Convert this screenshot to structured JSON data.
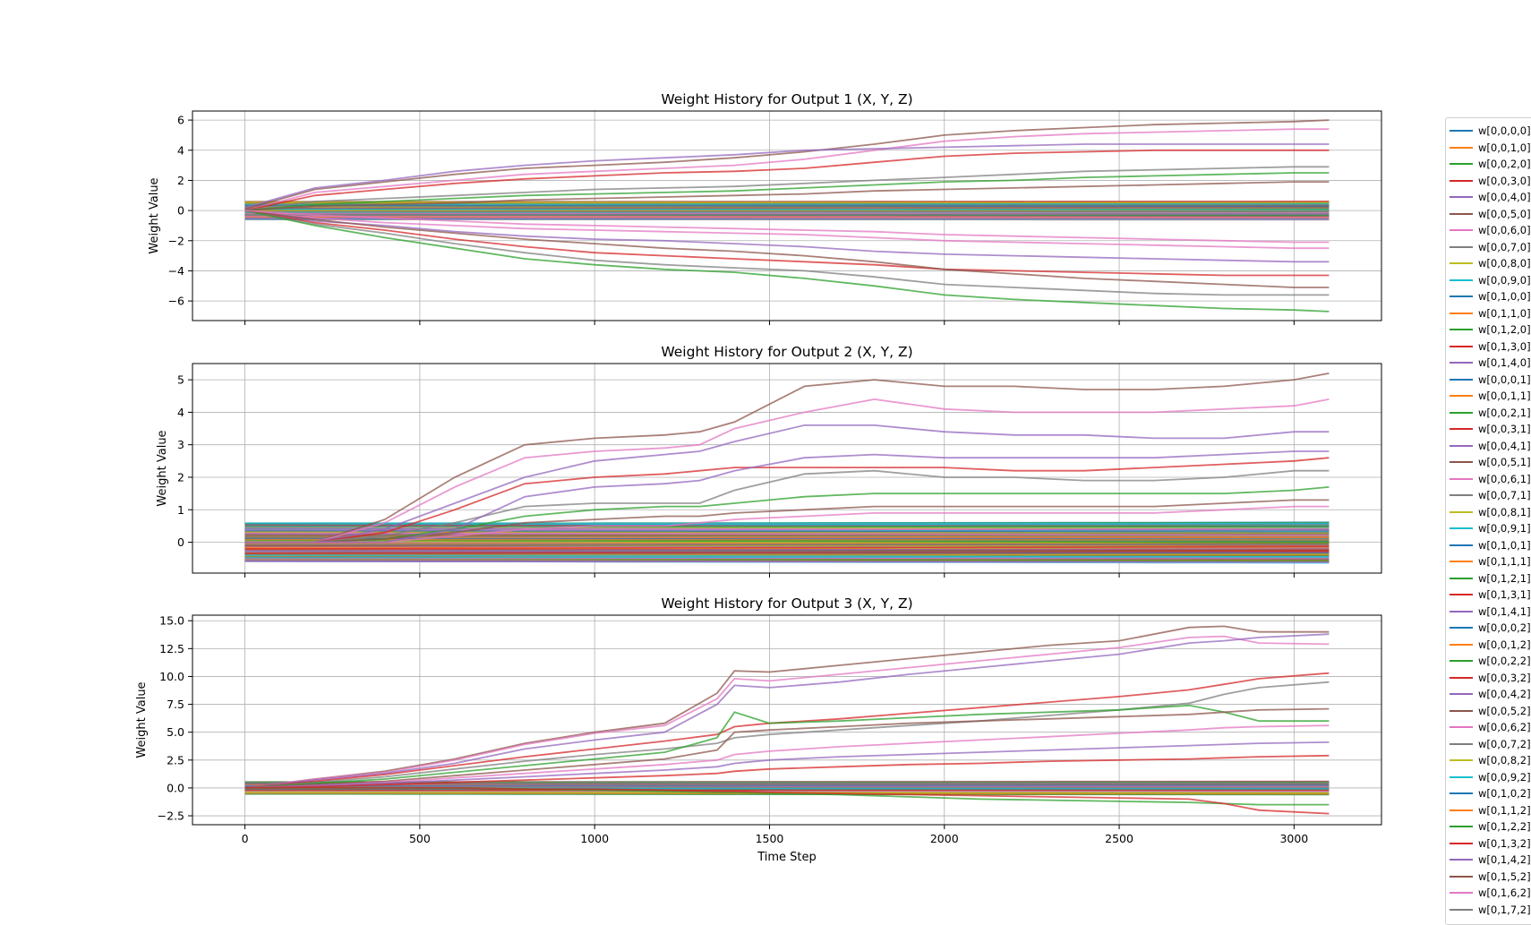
{
  "chart_data": [
    {
      "type": "line",
      "title": "Weight History for Output 1 (X, Y, Z)",
      "ylabel": "Weight Value",
      "xlabel": "",
      "xlim": [
        -150,
        3250
      ],
      "ylim": [
        -7.3,
        6.6
      ],
      "xticks": [
        0,
        500,
        1000,
        1500,
        2000,
        2500,
        3000
      ],
      "yticks": [
        -6,
        -4,
        -2,
        0,
        2,
        4,
        6
      ],
      "yticklabels": [
        "−6",
        "−4",
        "−2",
        "0",
        "2",
        "4",
        "6"
      ],
      "grid": true,
      "x": [
        0,
        200,
        400,
        600,
        800,
        1000,
        1200,
        1400,
        1600,
        1800,
        2000,
        2200,
        2400,
        2600,
        2800,
        3000,
        3100
      ],
      "series": [
        {
          "values": [
            0.1,
            1.4,
            1.9,
            2.4,
            2.8,
            3.0,
            3.2,
            3.5,
            3.9,
            4.4,
            5.0,
            5.3,
            5.5,
            5.7,
            5.8,
            5.9,
            6.0
          ]
        },
        {
          "values": [
            0.0,
            1.2,
            1.6,
            2.0,
            2.4,
            2.6,
            2.8,
            3.0,
            3.4,
            4.0,
            4.6,
            4.9,
            5.1,
            5.2,
            5.3,
            5.4,
            5.4
          ]
        },
        {
          "values": [
            0.2,
            1.5,
            2.0,
            2.6,
            3.0,
            3.3,
            3.5,
            3.7,
            4.0,
            4.1,
            4.2,
            4.3,
            4.4,
            4.4,
            4.4,
            4.4,
            4.4
          ]
        },
        {
          "values": [
            0.0,
            1.0,
            1.4,
            1.8,
            2.1,
            2.3,
            2.5,
            2.6,
            2.8,
            3.2,
            3.6,
            3.8,
            3.9,
            4.0,
            4.0,
            4.0,
            4.0
          ]
        },
        {
          "values": [
            0.0,
            0.6,
            0.8,
            1.0,
            1.2,
            1.4,
            1.5,
            1.6,
            1.8,
            2.0,
            2.2,
            2.4,
            2.6,
            2.7,
            2.8,
            2.9,
            2.9
          ]
        },
        {
          "values": [
            0.0,
            0.4,
            0.6,
            0.8,
            1.0,
            1.1,
            1.2,
            1.3,
            1.5,
            1.7,
            1.9,
            2.0,
            2.2,
            2.3,
            2.4,
            2.5,
            2.5
          ]
        },
        {
          "values": [
            0.0,
            0.3,
            0.4,
            0.5,
            0.7,
            0.8,
            0.9,
            1.0,
            1.1,
            1.3,
            1.4,
            1.5,
            1.6,
            1.7,
            1.8,
            1.9,
            1.9
          ]
        },
        {
          "values": [
            0.0,
            -0.5,
            -0.8,
            -1.0,
            -1.2,
            -1.3,
            -1.4,
            -1.5,
            -1.6,
            -1.8,
            -2.0,
            -2.1,
            -2.2,
            -2.3,
            -2.4,
            -2.5,
            -2.5
          ]
        },
        {
          "values": [
            0.0,
            -0.7,
            -1.0,
            -1.4,
            -1.7,
            -1.9,
            -2.0,
            -2.2,
            -2.4,
            -2.7,
            -2.9,
            -3.0,
            -3.1,
            -3.2,
            -3.3,
            -3.4,
            -3.4
          ]
        },
        {
          "values": [
            0.0,
            -0.8,
            -1.3,
            -1.9,
            -2.4,
            -2.8,
            -3.0,
            -3.2,
            -3.4,
            -3.6,
            -3.9,
            -4.0,
            -4.1,
            -4.2,
            -4.3,
            -4.3,
            -4.3
          ]
        },
        {
          "values": [
            0.0,
            -0.9,
            -1.5,
            -2.2,
            -2.8,
            -3.3,
            -3.6,
            -3.8,
            -4.0,
            -4.4,
            -4.9,
            -5.1,
            -5.3,
            -5.5,
            -5.6,
            -5.6,
            -5.6
          ]
        },
        {
          "values": [
            0.0,
            -1.0,
            -1.8,
            -2.5,
            -3.2,
            -3.6,
            -3.9,
            -4.1,
            -4.5,
            -5.0,
            -5.6,
            -5.9,
            -6.1,
            -6.3,
            -6.5,
            -6.6,
            -6.7
          ]
        },
        {
          "values": [
            0.0,
            -0.6,
            -1.1,
            -1.5,
            -1.9,
            -2.2,
            -2.5,
            -2.7,
            -3.0,
            -3.4,
            -3.9,
            -4.2,
            -4.5,
            -4.7,
            -4.9,
            -5.1,
            -5.1
          ]
        },
        {
          "values": [
            0.0,
            -0.3,
            -0.5,
            -0.7,
            -0.9,
            -1.0,
            -1.1,
            -1.2,
            -1.3,
            -1.4,
            -1.6,
            -1.7,
            -1.8,
            -1.9,
            -2.0,
            -2.1,
            -2.1
          ]
        }
      ]
    },
    {
      "type": "line",
      "title": "Weight History for Output 2 (X, Y, Z)",
      "ylabel": "Weight Value",
      "xlabel": "",
      "xlim": [
        -150,
        3250
      ],
      "ylim": [
        -0.95,
        5.5
      ],
      "xticks": [
        0,
        500,
        1000,
        1500,
        2000,
        2500,
        3000
      ],
      "yticks": [
        0,
        1,
        2,
        3,
        4,
        5
      ],
      "yticklabels": [
        "0",
        "1",
        "2",
        "3",
        "4",
        "5"
      ],
      "grid": true,
      "x": [
        0,
        200,
        400,
        600,
        800,
        1000,
        1200,
        1300,
        1400,
        1600,
        1800,
        2000,
        2200,
        2400,
        2600,
        2800,
        3000,
        3100
      ],
      "series": [
        {
          "values": [
            0.0,
            0.0,
            0.7,
            2.0,
            3.0,
            3.2,
            3.3,
            3.4,
            3.7,
            4.8,
            5.0,
            4.8,
            4.8,
            4.7,
            4.7,
            4.8,
            5.0,
            5.2
          ]
        },
        {
          "values": [
            0.0,
            0.0,
            0.6,
            1.7,
            2.6,
            2.8,
            2.9,
            3.0,
            3.5,
            4.0,
            4.4,
            4.1,
            4.0,
            4.0,
            4.0,
            4.1,
            4.2,
            4.4
          ]
        },
        {
          "values": [
            0.0,
            0.0,
            0.4,
            1.2,
            2.0,
            2.5,
            2.7,
            2.8,
            3.1,
            3.6,
            3.6,
            3.4,
            3.3,
            3.3,
            3.2,
            3.2,
            3.4,
            3.4
          ]
        },
        {
          "values": [
            0.0,
            0.0,
            0.3,
            1.0,
            1.8,
            2.0,
            2.1,
            2.2,
            2.3,
            2.3,
            2.3,
            2.3,
            2.2,
            2.2,
            2.3,
            2.4,
            2.5,
            2.6
          ]
        },
        {
          "values": [
            0.0,
            0.0,
            0.2,
            0.6,
            1.1,
            1.2,
            1.2,
            1.2,
            1.6,
            2.1,
            2.2,
            2.0,
            2.0,
            1.9,
            1.9,
            2.0,
            2.2,
            2.2
          ]
        },
        {
          "values": [
            0.0,
            0.0,
            0.1,
            0.4,
            0.8,
            1.0,
            1.1,
            1.1,
            1.2,
            1.4,
            1.5,
            1.5,
            1.5,
            1.5,
            1.5,
            1.5,
            1.6,
            1.7
          ]
        },
        {
          "values": [
            0.0,
            0.0,
            0.1,
            0.3,
            0.6,
            0.7,
            0.8,
            0.8,
            0.9,
            1.0,
            1.1,
            1.1,
            1.1,
            1.1,
            1.1,
            1.2,
            1.3,
            1.3
          ]
        },
        {
          "values": [
            0.0,
            0.0,
            0.0,
            0.2,
            0.4,
            0.5,
            0.5,
            0.6,
            0.7,
            0.8,
            0.9,
            0.9,
            0.9,
            0.9,
            0.9,
            1.0,
            1.1,
            1.1
          ]
        },
        {
          "values": [
            0.0,
            0.0,
            0.0,
            0.4,
            1.4,
            1.7,
            1.8,
            1.9,
            2.2,
            2.6,
            2.7,
            2.6,
            2.6,
            2.6,
            2.6,
            2.7,
            2.8,
            2.8
          ]
        }
      ]
    },
    {
      "type": "line",
      "title": "Weight History for Output 3 (X, Y, Z)",
      "ylabel": "Weight Value",
      "xlabel": "Time Step",
      "xlim": [
        -150,
        3250
      ],
      "ylim": [
        -3.3,
        15.5
      ],
      "xticks": [
        0,
        500,
        1000,
        1500,
        2000,
        2500,
        3000
      ],
      "yticks": [
        -2.5,
        0,
        2.5,
        5,
        7.5,
        10,
        12.5,
        15
      ],
      "yticklabels": [
        "−2.5",
        "0.0",
        "2.5",
        "5.0",
        "7.5",
        "10.0",
        "12.5",
        "15.0"
      ],
      "grid": true,
      "x": [
        0,
        200,
        400,
        600,
        800,
        1000,
        1200,
        1350,
        1400,
        1500,
        1700,
        1900,
        2100,
        2300,
        2500,
        2700,
        2800,
        2900,
        3100
      ],
      "series": [
        {
          "values": [
            0.0,
            0.8,
            1.5,
            2.6,
            4.0,
            5.0,
            5.8,
            8.5,
            10.5,
            10.4,
            11.0,
            11.6,
            12.2,
            12.8,
            13.2,
            14.4,
            14.5,
            14.0,
            14.0
          ]
        },
        {
          "values": [
            0.0,
            0.8,
            1.4,
            2.5,
            3.9,
            4.9,
            5.6,
            8.0,
            9.8,
            9.6,
            10.2,
            10.8,
            11.4,
            12.0,
            12.6,
            13.5,
            13.6,
            13.0,
            12.9
          ]
        },
        {
          "values": [
            0.0,
            0.7,
            1.3,
            2.2,
            3.5,
            4.3,
            5.0,
            7.5,
            9.2,
            9.0,
            9.5,
            10.2,
            10.8,
            11.4,
            12.0,
            13.0,
            13.2,
            13.5,
            13.8
          ]
        },
        {
          "values": [
            0.0,
            0.6,
            1.2,
            2.0,
            2.8,
            3.5,
            4.2,
            4.8,
            5.5,
            5.8,
            6.2,
            6.7,
            7.2,
            7.7,
            8.2,
            8.8,
            9.3,
            9.8,
            10.3
          ]
        },
        {
          "values": [
            0.0,
            0.5,
            1.0,
            1.7,
            2.4,
            3.0,
            3.5,
            4.0,
            4.5,
            4.8,
            5.2,
            5.6,
            6.0,
            6.5,
            7.0,
            7.6,
            8.4,
            9.0,
            9.5
          ]
        },
        {
          "values": [
            0.0,
            0.4,
            0.8,
            1.4,
            2.0,
            2.6,
            3.2,
            4.5,
            6.8,
            5.8,
            6.0,
            6.3,
            6.6,
            6.8,
            7.0,
            7.4,
            6.8,
            6.0,
            6.0
          ]
        },
        {
          "values": [
            0.0,
            0.3,
            0.6,
            1.1,
            1.6,
            2.1,
            2.6,
            3.4,
            5.0,
            5.2,
            5.5,
            5.8,
            6.0,
            6.2,
            6.4,
            6.6,
            6.8,
            7.0,
            7.1
          ]
        },
        {
          "values": [
            0.0,
            0.2,
            0.5,
            0.9,
            1.3,
            1.7,
            2.1,
            2.5,
            3.0,
            3.3,
            3.7,
            4.0,
            4.3,
            4.6,
            4.9,
            5.2,
            5.4,
            5.5,
            5.6
          ]
        },
        {
          "values": [
            0.0,
            0.2,
            0.4,
            0.7,
            1.0,
            1.3,
            1.6,
            1.9,
            2.2,
            2.5,
            2.8,
            3.0,
            3.2,
            3.4,
            3.6,
            3.8,
            3.9,
            4.0,
            4.1
          ]
        },
        {
          "values": [
            0.0,
            0.1,
            0.3,
            0.5,
            0.7,
            0.9,
            1.1,
            1.3,
            1.5,
            1.7,
            1.9,
            2.1,
            2.2,
            2.4,
            2.5,
            2.6,
            2.7,
            2.8,
            2.9
          ]
        },
        {
          "values": [
            0.0,
            0.0,
            0.0,
            0.0,
            -0.1,
            -0.2,
            -0.3,
            -0.4,
            -0.4,
            -0.5,
            -0.6,
            -0.8,
            -1.0,
            -1.1,
            -1.2,
            -1.3,
            -1.4,
            -1.5,
            -1.5
          ]
        },
        {
          "values": [
            0.0,
            0.0,
            0.0,
            0.0,
            -0.1,
            -0.1,
            -0.2,
            -0.3,
            -0.3,
            -0.4,
            -0.5,
            -0.6,
            -0.7,
            -0.8,
            -0.9,
            -1.0,
            -1.4,
            -2.0,
            -2.3
          ]
        }
      ]
    }
  ],
  "legend": {
    "entries": [
      {
        "label": "w[0,0,0,0]",
        "color": "#1f77b4"
      },
      {
        "label": "w[0,0,1,0]",
        "color": "#ff7f0e"
      },
      {
        "label": "w[0,0,2,0]",
        "color": "#2ca02c"
      },
      {
        "label": "w[0,0,3,0]",
        "color": "#d62728"
      },
      {
        "label": "w[0,0,4,0]",
        "color": "#9467bd"
      },
      {
        "label": "w[0,0,5,0]",
        "color": "#8c564b"
      },
      {
        "label": "w[0,0,6,0]",
        "color": "#e377c2"
      },
      {
        "label": "w[0,0,7,0]",
        "color": "#7f7f7f"
      },
      {
        "label": "w[0,0,8,0]",
        "color": "#bcbd22"
      },
      {
        "label": "w[0,0,9,0]",
        "color": "#17becf"
      },
      {
        "label": "w[0,1,0,0]",
        "color": "#1f77b4"
      },
      {
        "label": "w[0,1,1,0]",
        "color": "#ff7f0e"
      },
      {
        "label": "w[0,1,2,0]",
        "color": "#2ca02c"
      },
      {
        "label": "w[0,1,3,0]",
        "color": "#d62728"
      },
      {
        "label": "w[0,1,4,0]",
        "color": "#9467bd"
      },
      {
        "label": "w[0,0,0,1]",
        "color": "#1f77b4"
      },
      {
        "label": "w[0,0,1,1]",
        "color": "#ff7f0e"
      },
      {
        "label": "w[0,0,2,1]",
        "color": "#2ca02c"
      },
      {
        "label": "w[0,0,3,1]",
        "color": "#d62728"
      },
      {
        "label": "w[0,0,4,1]",
        "color": "#9467bd"
      },
      {
        "label": "w[0,0,5,1]",
        "color": "#8c564b"
      },
      {
        "label": "w[0,0,6,1]",
        "color": "#e377c2"
      },
      {
        "label": "w[0,0,7,1]",
        "color": "#7f7f7f"
      },
      {
        "label": "w[0,0,8,1]",
        "color": "#bcbd22"
      },
      {
        "label": "w[0,0,9,1]",
        "color": "#17becf"
      },
      {
        "label": "w[0,1,0,1]",
        "color": "#1f77b4"
      },
      {
        "label": "w[0,1,1,1]",
        "color": "#ff7f0e"
      },
      {
        "label": "w[0,1,2,1]",
        "color": "#2ca02c"
      },
      {
        "label": "w[0,1,3,1]",
        "color": "#d62728"
      },
      {
        "label": "w[0,1,4,1]",
        "color": "#9467bd"
      },
      {
        "label": "w[0,0,0,2]",
        "color": "#1f77b4"
      },
      {
        "label": "w[0,0,1,2]",
        "color": "#ff7f0e"
      },
      {
        "label": "w[0,0,2,2]",
        "color": "#2ca02c"
      },
      {
        "label": "w[0,0,3,2]",
        "color": "#d62728"
      },
      {
        "label": "w[0,0,4,2]",
        "color": "#9467bd"
      },
      {
        "label": "w[0,0,5,2]",
        "color": "#8c564b"
      },
      {
        "label": "w[0,0,6,2]",
        "color": "#e377c2"
      },
      {
        "label": "w[0,0,7,2]",
        "color": "#7f7f7f"
      },
      {
        "label": "w[0,0,8,2]",
        "color": "#bcbd22"
      },
      {
        "label": "w[0,0,9,2]",
        "color": "#17becf"
      },
      {
        "label": "w[0,1,0,2]",
        "color": "#1f77b4"
      },
      {
        "label": "w[0,1,1,2]",
        "color": "#ff7f0e"
      },
      {
        "label": "w[0,1,2,2]",
        "color": "#2ca02c"
      },
      {
        "label": "w[0,1,3,2]",
        "color": "#d62728"
      },
      {
        "label": "w[0,1,4,2]",
        "color": "#9467bd"
      },
      {
        "label": "w[0,1,5,2]",
        "color": "#8c564b"
      },
      {
        "label": "w[0,1,6,2]",
        "color": "#e377c2"
      },
      {
        "label": "w[0,1,7,2]",
        "color": "#7f7f7f"
      }
    ]
  },
  "colors": {
    "palette": [
      "#1f77b4",
      "#ff7f0e",
      "#2ca02c",
      "#d62728",
      "#9467bd",
      "#8c564b",
      "#e377c2",
      "#7f7f7f",
      "#bcbd22",
      "#17becf"
    ],
    "grid": "#b0b0b0",
    "axes": "#000000"
  }
}
